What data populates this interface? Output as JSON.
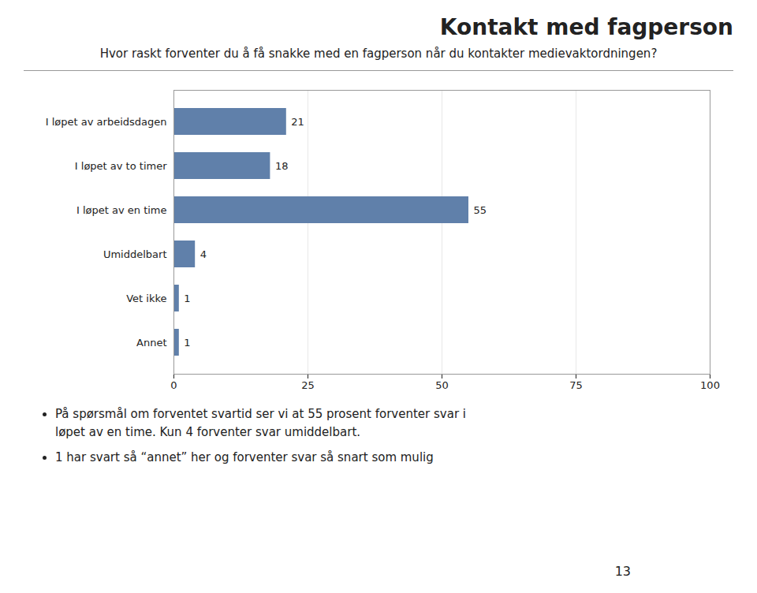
{
  "chart_data": {
    "type": "bar",
    "orientation": "horizontal",
    "title": "Kontakt med fagperson",
    "subtitle": "Hvor raskt forventer du å få snakke med en fagperson når du kontakter medievaktordningen?",
    "categories": [
      "I løpet av arbeidsdagen",
      "I løpet av to timer",
      "I løpet av en time",
      "Umiddelbart",
      "Vet ikke",
      "Annet"
    ],
    "values": [
      21,
      18,
      55,
      4,
      1,
      1
    ],
    "color": "#6080aa",
    "xlim": [
      0,
      100
    ],
    "xticks": [
      0,
      25,
      50,
      75,
      100
    ],
    "grid": true,
    "data_labels": true,
    "annotations": [
      [
        "På spørsmål om forventet svartid ser vi at 55 prosent forventer svar i",
        "løpet av en time. Kun 4 forventer svar umiddelbart."
      ],
      [
        "1 har svart så “annet” her og forventer svar så snart som mulig"
      ]
    ],
    "page_number": "13"
  }
}
